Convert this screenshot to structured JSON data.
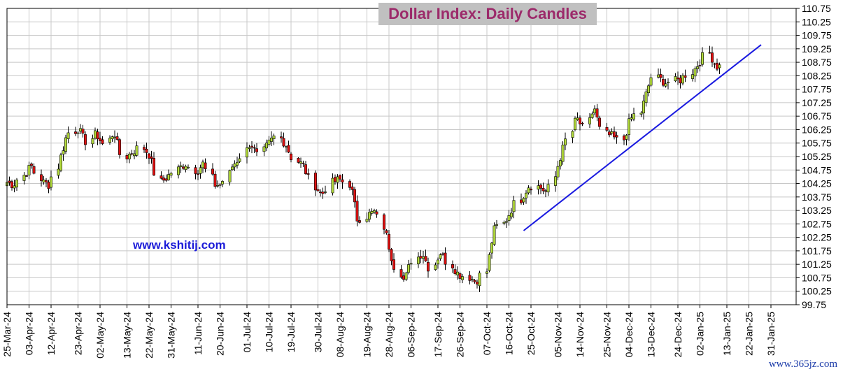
{
  "chart_data": {
    "type": "candlestick",
    "title": "Dollar Index:  Daily Candles",
    "site_label": "www.kshitij.com",
    "watermark": "www.365jz.com",
    "ylim": [
      99.75,
      110.75
    ],
    "y_ticks": [
      "110.75",
      "110.25",
      "109.75",
      "109.25",
      "108.75",
      "108.25",
      "107.75",
      "107.25",
      "106.75",
      "106.25",
      "105.75",
      "105.25",
      "104.75",
      "104.25",
      "103.75",
      "103.25",
      "102.75",
      "102.25",
      "101.75",
      "101.25",
      "100.75",
      "100.25",
      "99.75"
    ],
    "x_ticks": [
      "25-Mar-24",
      "03-Apr-24",
      "12-Apr-24",
      "23-Apr-24",
      "02-May-24",
      "13-May-24",
      "22-May-24",
      "31-May-24",
      "11-Jun-24",
      "20-Jun-24",
      "01-Jul-24",
      "10-Jul-24",
      "19-Jul-24",
      "30-Jul-24",
      "08-Aug-24",
      "19-Aug-24",
      "28-Aug-24",
      "06-Sep-24",
      "17-Sep-24",
      "26-Sep-24",
      "07-Oct-24",
      "16-Oct-24",
      "25-Oct-24",
      "05-Nov-24",
      "14-Nov-24",
      "25-Nov-24",
      "04-Dec-24",
      "13-Dec-24",
      "24-Dec-24",
      "02-Jan-25",
      "13-Jan-25",
      "22-Jan-25",
      "31-Jan-25"
    ],
    "grid": true,
    "colors": {
      "up": "#b4dc3c",
      "down": "#e01010",
      "trendline": "#1a1ae0",
      "grid": "#c8c8c8"
    },
    "trendline": {
      "start": {
        "date": "22-Oct-24",
        "value": 102.5
      },
      "end": {
        "date": "27-Jan-25",
        "value": 109.4
      }
    },
    "trade_days": 210,
    "anchors": [
      [
        0,
        104.3
      ],
      [
        3,
        104.2
      ],
      [
        6,
        104.6
      ],
      [
        9,
        104.9
      ],
      [
        12,
        104.3
      ],
      [
        15,
        104.2
      ],
      [
        18,
        105.2
      ],
      [
        21,
        106.1
      ],
      [
        24,
        106.3
      ],
      [
        27,
        105.8
      ],
      [
        30,
        106.1
      ],
      [
        33,
        105.7
      ],
      [
        36,
        106.2
      ],
      [
        39,
        105.2
      ],
      [
        42,
        105.4
      ],
      [
        45,
        105.6
      ],
      [
        48,
        105.3
      ],
      [
        51,
        104.3
      ],
      [
        54,
        104.5
      ],
      [
        57,
        104.8
      ],
      [
        60,
        105.0
      ],
      [
        63,
        104.7
      ],
      [
        66,
        105.0
      ],
      [
        69,
        104.2
      ],
      [
        72,
        104.2
      ],
      [
        75,
        104.9
      ],
      [
        78,
        105.2
      ],
      [
        81,
        105.8
      ],
      [
        84,
        105.3
      ],
      [
        87,
        105.7
      ],
      [
        90,
        106.0
      ],
      [
        93,
        105.7
      ],
      [
        96,
        105.1
      ],
      [
        99,
        104.9
      ],
      [
        102,
        104.2
      ],
      [
        105,
        103.8
      ],
      [
        108,
        104.3
      ],
      [
        111,
        104.4
      ],
      [
        114,
        104.2
      ],
      [
        117,
        102.9
      ],
      [
        120,
        103.1
      ],
      [
        123,
        103.2
      ],
      [
        126,
        102.3
      ],
      [
        129,
        101.3
      ],
      [
        132,
        100.6
      ],
      [
        135,
        101.4
      ],
      [
        138,
        101.7
      ],
      [
        141,
        101.1
      ],
      [
        144,
        101.7
      ],
      [
        147,
        101.3
      ],
      [
        150,
        100.9
      ],
      [
        153,
        100.8
      ],
      [
        156,
        100.6
      ],
      [
        159,
        101.0
      ],
      [
        162,
        102.5
      ],
      [
        165,
        102.8
      ],
      [
        168,
        103.3
      ],
      [
        171,
        103.8
      ],
      [
        174,
        104.2
      ],
      [
        177,
        104.1
      ],
      [
        180,
        103.9
      ],
      [
        183,
        105.0
      ],
      [
        186,
        105.8
      ],
      [
        189,
        106.7
      ],
      [
        192,
        106.3
      ],
      [
        195,
        107.1
      ],
      [
        198,
        106.1
      ],
      [
        201,
        106.0
      ],
      [
        204,
        105.8
      ],
      [
        207,
        106.6
      ],
      [
        210,
        106.9
      ]
    ],
    "anchors_dec_jan": [
      [
        0,
        106.9
      ],
      [
        3,
        108.2
      ],
      [
        6,
        108.0
      ],
      [
        9,
        108.1
      ],
      [
        12,
        108.5
      ],
      [
        15,
        109.1
      ],
      [
        17,
        108.6
      ],
      [
        18,
        108.6
      ]
    ]
  }
}
